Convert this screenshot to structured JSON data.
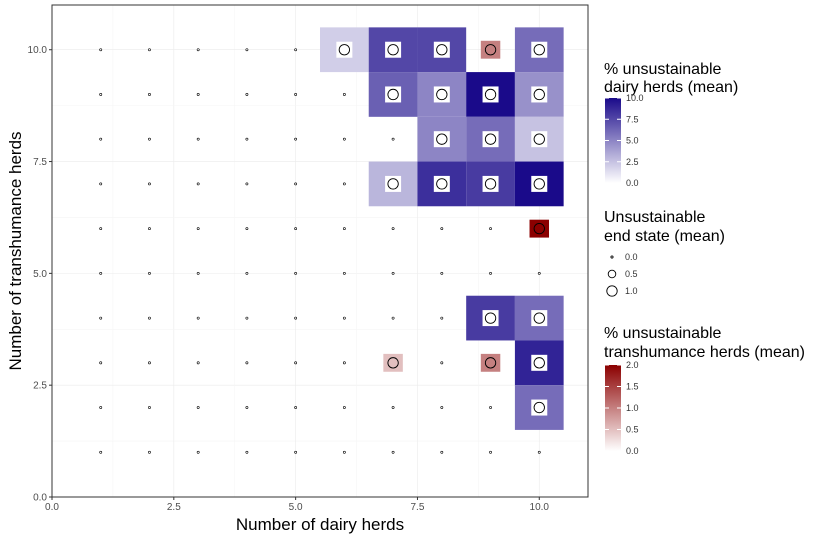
{
  "chart_data": {
    "type": "heatmap",
    "xlabel": "Number of dairy herds",
    "ylabel": "Number of transhumance herds",
    "xlim": [
      0,
      11
    ],
    "ylim": [
      0,
      11
    ],
    "x_ticks": [
      "0.0",
      "2.5",
      "5.0",
      "7.5",
      "10.0"
    ],
    "y_ticks": [
      "0.0",
      "2.5",
      "5.0",
      "7.5",
      "10.0"
    ],
    "grid": true,
    "tiles_dairy": [
      {
        "x": 6,
        "y": 10,
        "value": 2.0
      },
      {
        "x": 7,
        "y": 10,
        "value": 7.5
      },
      {
        "x": 8,
        "y": 10,
        "value": 7.5
      },
      {
        "x": 10,
        "y": 10,
        "value": 6.0
      },
      {
        "x": 7,
        "y": 9,
        "value": 6.5
      },
      {
        "x": 8,
        "y": 9,
        "value": 5.0
      },
      {
        "x": 9,
        "y": 9,
        "value": 10.0
      },
      {
        "x": 10,
        "y": 9,
        "value": 4.5
      },
      {
        "x": 8,
        "y": 8,
        "value": 5.0
      },
      {
        "x": 9,
        "y": 8,
        "value": 6.0
      },
      {
        "x": 10,
        "y": 8,
        "value": 2.5
      },
      {
        "x": 7,
        "y": 7,
        "value": 3.0
      },
      {
        "x": 8,
        "y": 7,
        "value": 8.5
      },
      {
        "x": 9,
        "y": 7,
        "value": 8.0
      },
      {
        "x": 10,
        "y": 7,
        "value": 10.5
      },
      {
        "x": 9,
        "y": 4,
        "value": 8.0
      },
      {
        "x": 10,
        "y": 4,
        "value": 6.0
      },
      {
        "x": 10,
        "y": 3,
        "value": 9.0
      },
      {
        "x": 10,
        "y": 2,
        "value": 6.0
      }
    ],
    "tiles_transhumance": [
      {
        "x": 9,
        "y": 10,
        "value": 1.0
      },
      {
        "x": 10,
        "y": 6,
        "value": 2.0
      },
      {
        "x": 7,
        "y": 3,
        "value": 0.5
      },
      {
        "x": 9,
        "y": 3,
        "value": 1.0
      }
    ],
    "points": {
      "grid_x": [
        1,
        2,
        3,
        4,
        5,
        6,
        7,
        8,
        9,
        10
      ],
      "grid_y": [
        1,
        2,
        3,
        4,
        5,
        6,
        7,
        8,
        9,
        10
      ],
      "ring_points": [
        [
          6,
          10
        ],
        [
          7,
          10
        ],
        [
          8,
          10
        ],
        [
          9,
          10
        ],
        [
          10,
          10
        ],
        [
          7,
          9
        ],
        [
          8,
          9
        ],
        [
          9,
          9
        ],
        [
          10,
          9
        ],
        [
          8,
          8
        ],
        [
          9,
          8
        ],
        [
          10,
          8
        ],
        [
          7,
          7
        ],
        [
          8,
          7
        ],
        [
          9,
          7
        ],
        [
          10,
          7
        ],
        [
          10,
          6
        ],
        [
          9,
          4
        ],
        [
          10,
          4
        ],
        [
          7,
          3
        ],
        [
          9,
          3
        ],
        [
          10,
          3
        ],
        [
          10,
          2
        ]
      ],
      "ring_value": 1.0,
      "dot_value": 0.0
    },
    "legends": {
      "dairy": {
        "title_line1": "% unsustainable",
        "title_line2": "dairy herds (mean)",
        "labels": [
          "10.0",
          "7.5",
          "5.0",
          "2.5",
          "0.0"
        ],
        "low_color": "#ffffff",
        "high_color": "#1a0a8a",
        "range": [
          0,
          10
        ]
      },
      "size": {
        "title_line1": "Unsustainable",
        "title_line2": "end state (mean)",
        "labels": [
          "0.0",
          "0.5",
          "1.0"
        ]
      },
      "transhumance": {
        "title_line1": "% unsustainable",
        "title_line2": "transhumance herds (mean)",
        "labels": [
          "2.0",
          "1.5",
          "1.0",
          "0.5",
          "0.0"
        ],
        "low_color": "#ffffff",
        "high_color": "#8b0000",
        "range": [
          0,
          2
        ]
      }
    }
  }
}
